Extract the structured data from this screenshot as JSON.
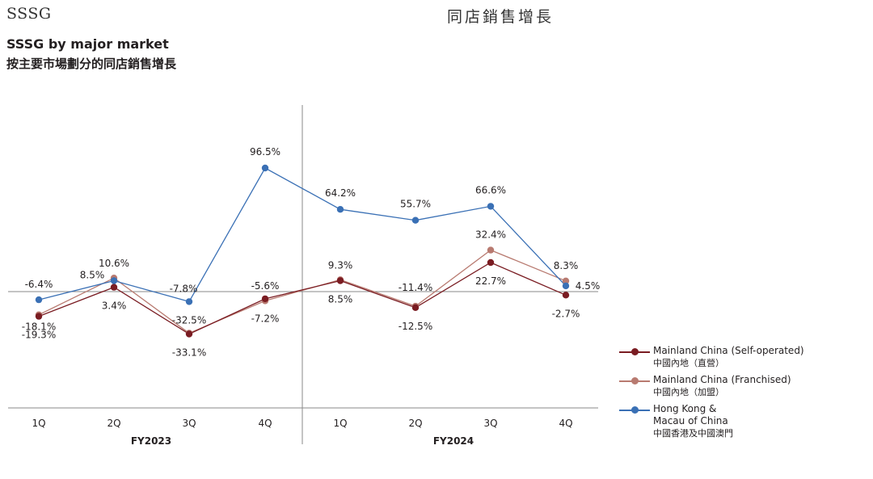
{
  "header": {
    "left": "SSSG",
    "right": "同店銷售增長"
  },
  "title": "SSSG by major market",
  "subtitle": "按主要市場劃分的同店銷售增長",
  "chart_data": {
    "type": "line",
    "categories": [
      "1Q",
      "2Q",
      "3Q",
      "4Q",
      "1Q",
      "2Q",
      "3Q",
      "4Q"
    ],
    "groups": [
      {
        "label": "FY2023",
        "categories": [
          "1Q",
          "2Q",
          "3Q",
          "4Q"
        ]
      },
      {
        "label": "FY2024",
        "categories": [
          "1Q",
          "2Q",
          "3Q",
          "4Q"
        ]
      }
    ],
    "series": [
      {
        "name": "Mainland China (Self-operated)",
        "name_zh": "中國內地（直營）",
        "color": "#7a1c22",
        "values": [
          -19.3,
          3.4,
          -33.1,
          -5.6,
          8.5,
          -12.5,
          22.7,
          -2.7
        ],
        "labels": [
          "-19.3%",
          "3.4%",
          "-33.1%",
          "-5.6%",
          "8.5%",
          "-12.5%",
          "22.7%",
          "-2.7%"
        ]
      },
      {
        "name": "Mainland China (Franchised)",
        "name_zh": "中國內地（加盟）",
        "color": "#b87a70",
        "values": [
          -18.1,
          10.6,
          -32.5,
          -7.2,
          9.3,
          -11.4,
          32.4,
          8.3
        ],
        "labels": [
          "-18.1%",
          "10.6%",
          "-32.5%",
          "-7.2%",
          "9.3%",
          "-11.4%",
          "32.4%",
          "8.3%"
        ]
      },
      {
        "name": "Hong Kong & Macau of China",
        "name_zh": "中國香港及中國澳門",
        "color": "#3a70b5",
        "values": [
          -6.4,
          8.5,
          -7.8,
          96.5,
          64.2,
          55.7,
          66.6,
          4.5
        ],
        "labels": [
          "-6.4%",
          "8.5%",
          "-7.8%",
          "96.5%",
          "64.2%",
          "55.7%",
          "66.6%",
          "4.5%"
        ]
      }
    ],
    "ylim": [
      -80,
      125
    ],
    "grid": false,
    "zero_line": true,
    "legend_position": "bottom-right"
  },
  "legend": [
    {
      "line1": "Mainland China (Self-operated)",
      "line2": "中國內地（直營）"
    },
    {
      "line1": "Mainland China (Franchised)",
      "line2": "中國內地（加盟）"
    },
    {
      "line1": "Hong Kong &",
      "line1b": "Macau of China",
      "line2": "中國香港及中國澳門"
    }
  ]
}
